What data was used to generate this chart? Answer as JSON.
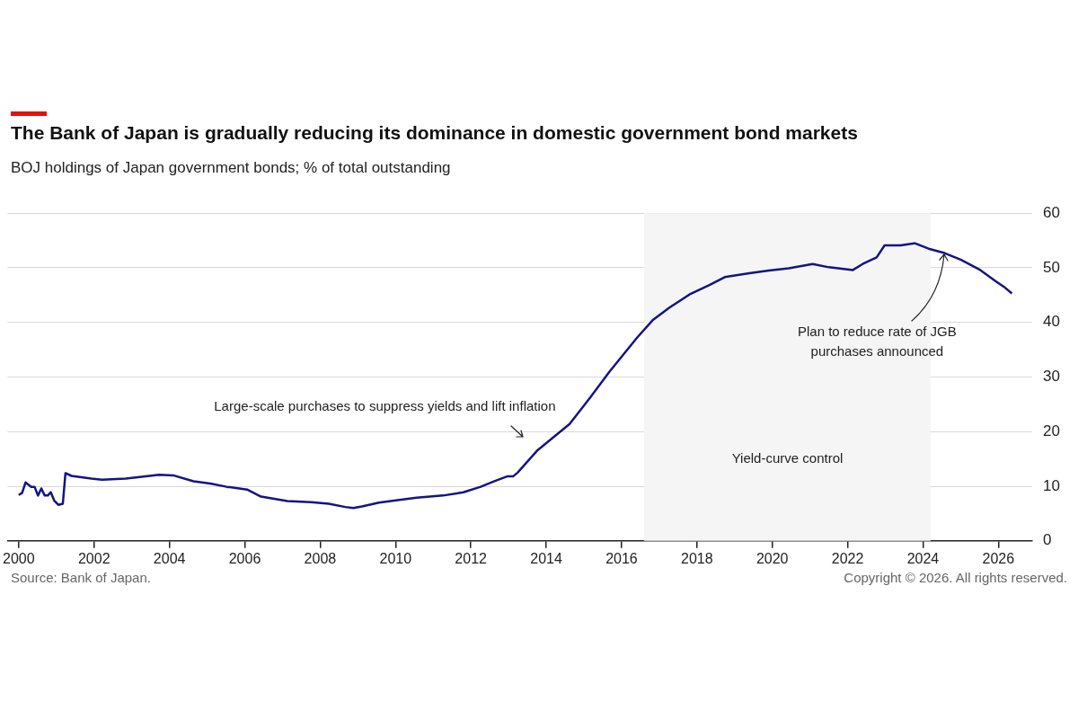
{
  "chart_data": {
    "type": "line",
    "title": "The Bank of Japan is gradually reducing its dominance in domestic government bond markets",
    "subtitle": "BOJ holdings of Japan government bonds; % of total outstanding",
    "x": [
      2000.0,
      2000.09,
      2000.18,
      2000.33,
      2000.42,
      2000.51,
      2000.6,
      2000.69,
      2000.77,
      2000.85,
      2000.94,
      2001.05,
      2001.17,
      2001.24,
      2001.4,
      2001.93,
      2002.21,
      2002.84,
      2003.73,
      2004.1,
      2004.64,
      2005.08,
      2005.52,
      2006.06,
      2006.43,
      2007.13,
      2007.76,
      2008.23,
      2008.67,
      2008.88,
      2009.11,
      2009.56,
      2010.01,
      2010.56,
      2011.26,
      2011.8,
      2012.26,
      2012.61,
      2012.96,
      2013.12,
      2013.24,
      2013.77,
      2014.62,
      2015.15,
      2015.68,
      2016.41,
      2016.84,
      2017.27,
      2017.8,
      2018.32,
      2018.74,
      2019.39,
      2019.91,
      2020.44,
      2021.07,
      2021.5,
      2022.14,
      2022.4,
      2022.77,
      2022.98,
      2023.4,
      2023.78,
      2024.15,
      2024.57,
      2025.0,
      2025.52,
      2025.94,
      2026.17,
      2026.36
    ],
    "series": [
      {
        "color": "#141482",
        "values": [
          8.4,
          8.8,
          10.7,
          9.9,
          9.9,
          8.3,
          9.6,
          8.3,
          8.3,
          8.9,
          7.4,
          6.6,
          6.8,
          12.4,
          11.9,
          11.4,
          11.2,
          11.4,
          12.1,
          12.0,
          10.9,
          10.5,
          9.9,
          9.4,
          8.1,
          7.3,
          7.1,
          6.8,
          6.2,
          6.0,
          6.3,
          7.0,
          7.4,
          7.9,
          8.3,
          8.9,
          9.9,
          10.9,
          11.8,
          11.8,
          12.5,
          16.6,
          21.4,
          26.1,
          31.0,
          37.2,
          40.5,
          42.7,
          45.1,
          46.8,
          48.3,
          49.0,
          49.5,
          49.9,
          50.7,
          50.1,
          49.6,
          50.7,
          51.9,
          54.1,
          54.1,
          54.5,
          53.5,
          52.7,
          51.5,
          49.6,
          47.5,
          46.4,
          45.3
        ]
      }
    ],
    "xlim": [
      1999.7,
      2026.9
    ],
    "xticks": [
      2000,
      2002,
      2004,
      2006,
      2008,
      2010,
      2012,
      2014,
      2016,
      2018,
      2020,
      2022,
      2024,
      2026
    ],
    "ylim": [
      0,
      60
    ],
    "yticks": [
      0,
      10,
      20,
      30,
      40,
      50,
      60
    ],
    "grid": "y",
    "legend": false,
    "bands": [
      {
        "axis": "x",
        "from": 2016.6,
        "to": 2024.2,
        "label": "Yield-curve control",
        "color": "#f5f5f5"
      }
    ],
    "annotations": [
      {
        "text": "Large-scale purchases to suppress yields and lift inflation",
        "x": 2013.77,
        "y": 16.6
      },
      {
        "text": "Plan to reduce rate of JGB purchases announced",
        "x": 2024.57,
        "y": 52.7
      },
      "Source: Bank of Japan.",
      "Copyright © 2026. All rights reserved."
    ]
  }
}
